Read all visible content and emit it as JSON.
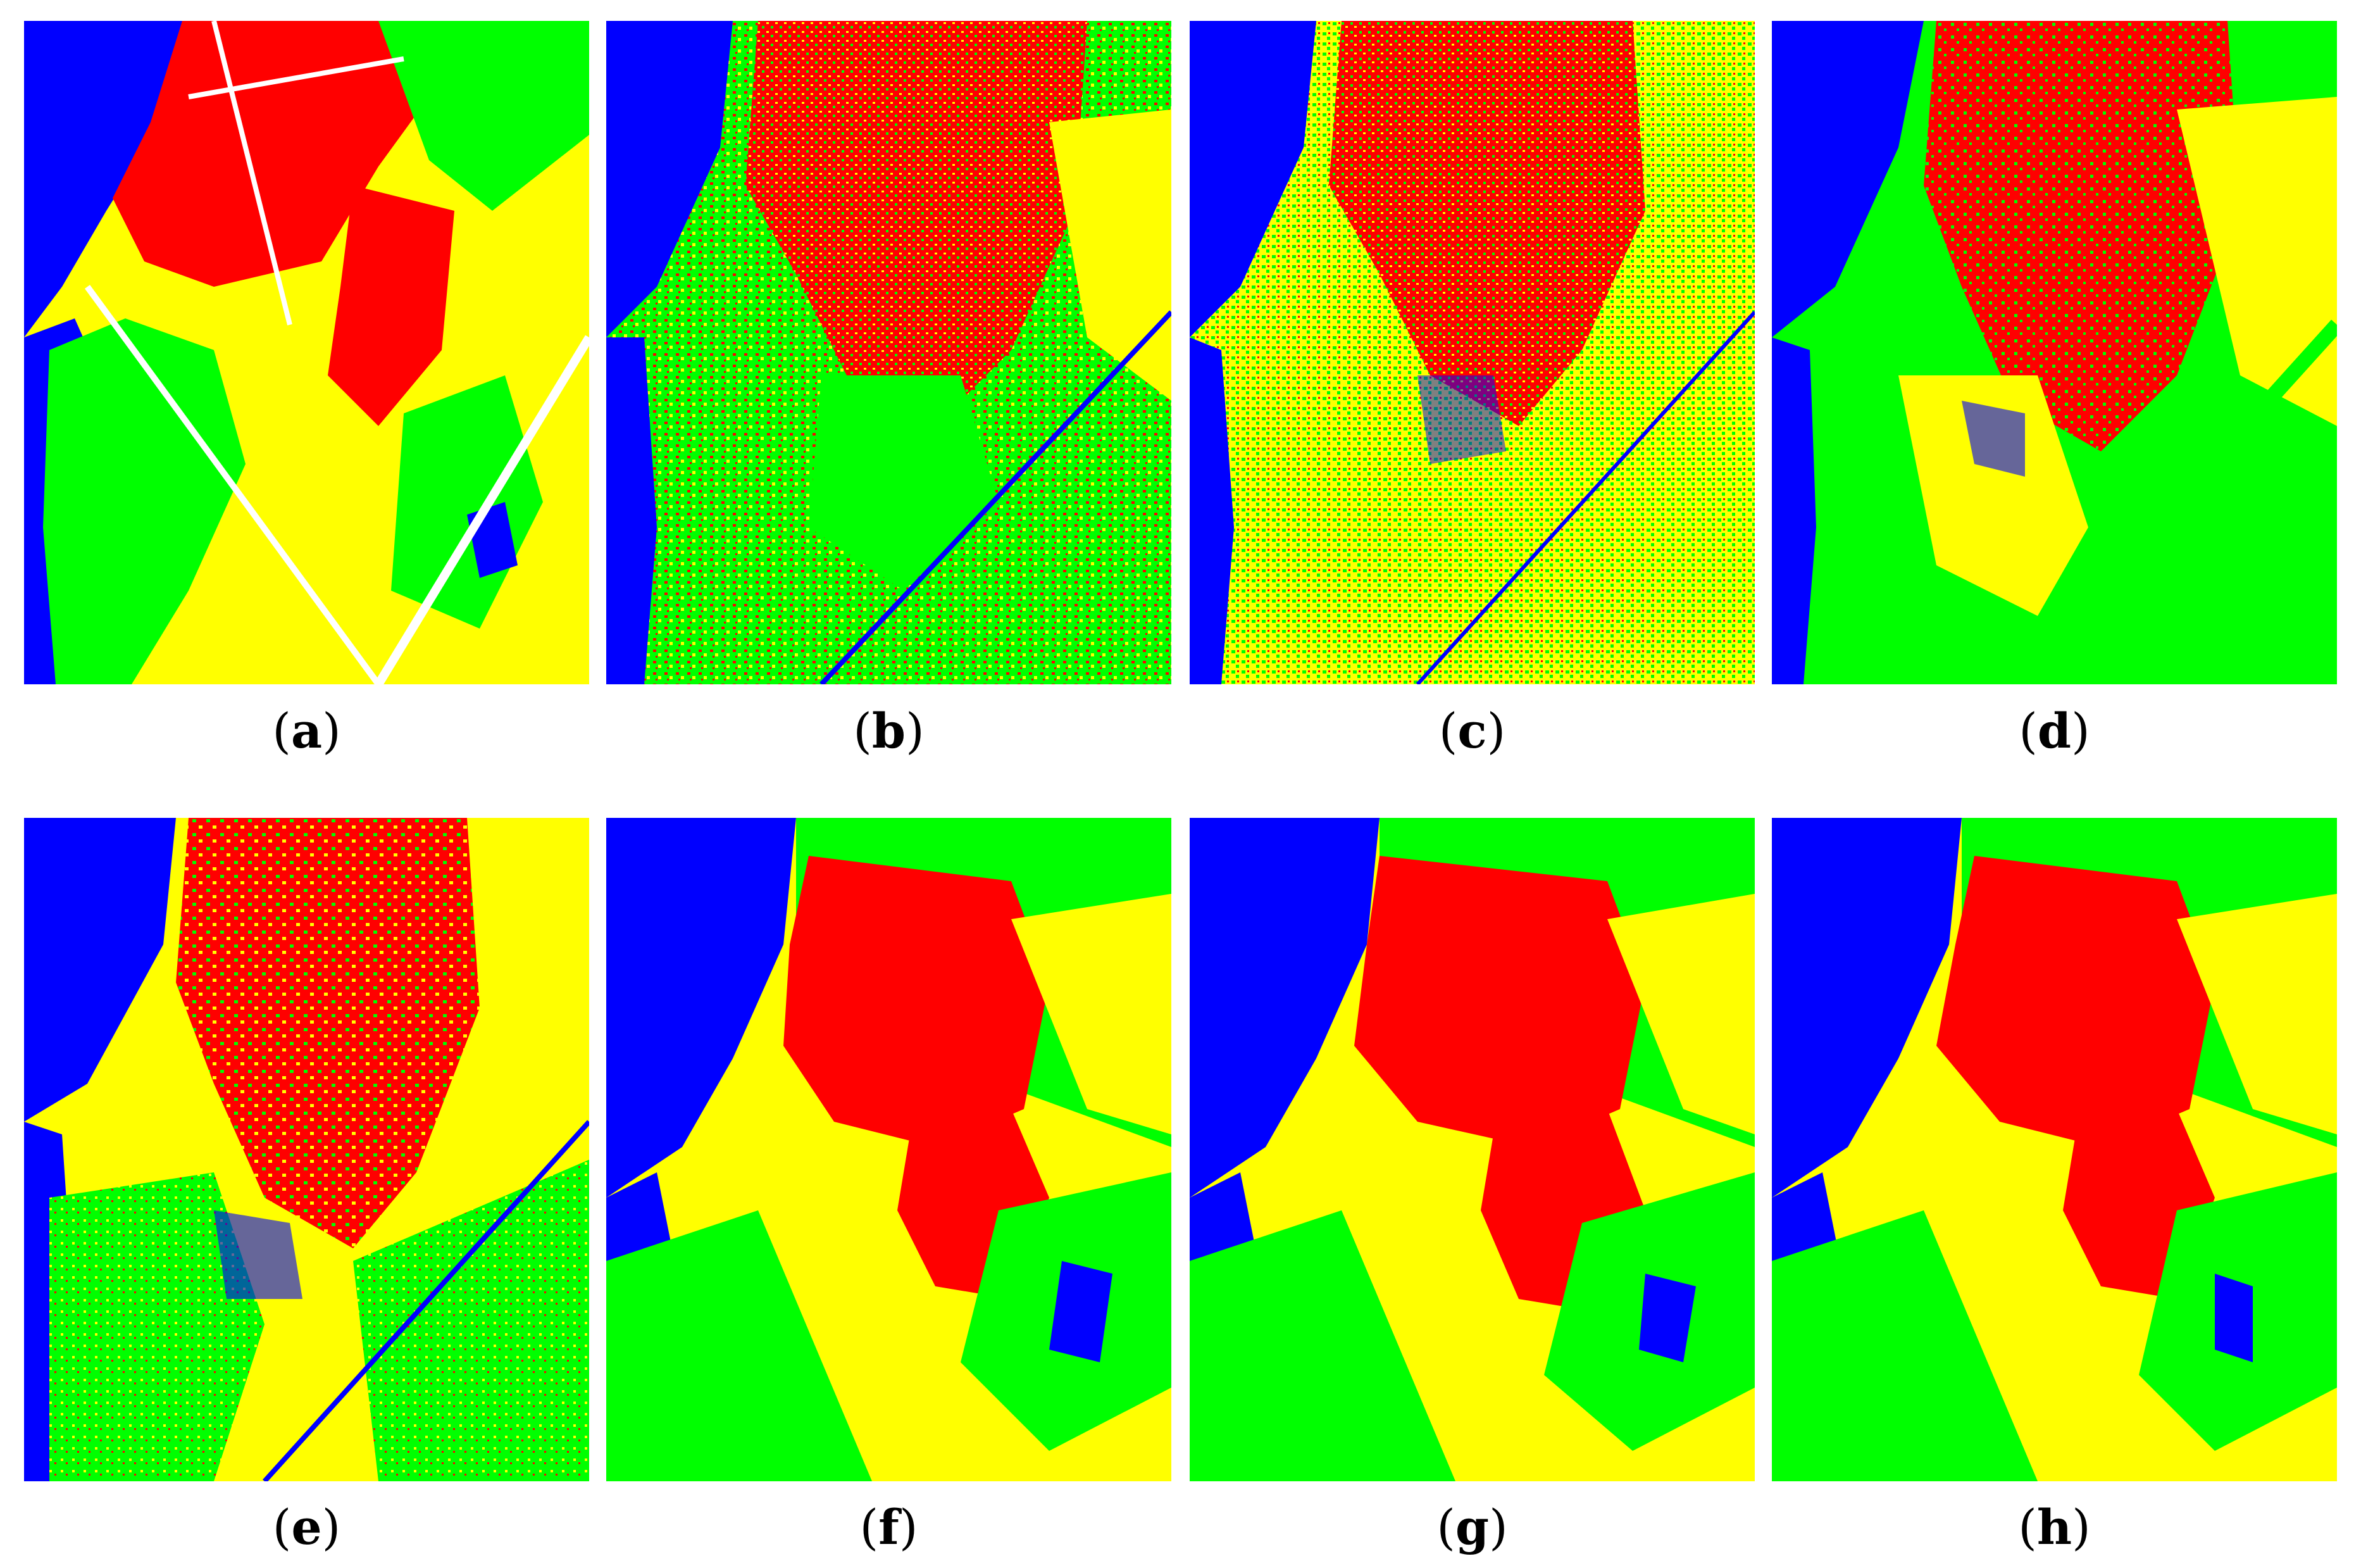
{
  "colors": {
    "water": "#0000ff",
    "urban": "#ff0000",
    "vegetation": "#00ff00",
    "farmland": "#ffff00",
    "road": "#ffffff"
  },
  "panels": [
    {
      "id": "a",
      "open": "(",
      "label": "a",
      "close": ")",
      "style": "ground-truth"
    },
    {
      "id": "b",
      "open": "(",
      "label": "b",
      "close": ")",
      "style": "noisy"
    },
    {
      "id": "c",
      "open": "(",
      "label": "c",
      "close": ")",
      "style": "noisy"
    },
    {
      "id": "d",
      "open": "(",
      "label": "d",
      "close": ")",
      "style": "semi-smooth"
    },
    {
      "id": "e",
      "open": "(",
      "label": "e",
      "close": ")",
      "style": "noisy"
    },
    {
      "id": "f",
      "open": "(",
      "label": "f",
      "close": ")",
      "style": "smooth"
    },
    {
      "id": "g",
      "open": "(",
      "label": "g",
      "close": ")",
      "style": "smooth"
    },
    {
      "id": "h",
      "open": "(",
      "label": "h",
      "close": ")",
      "style": "smooth"
    }
  ]
}
